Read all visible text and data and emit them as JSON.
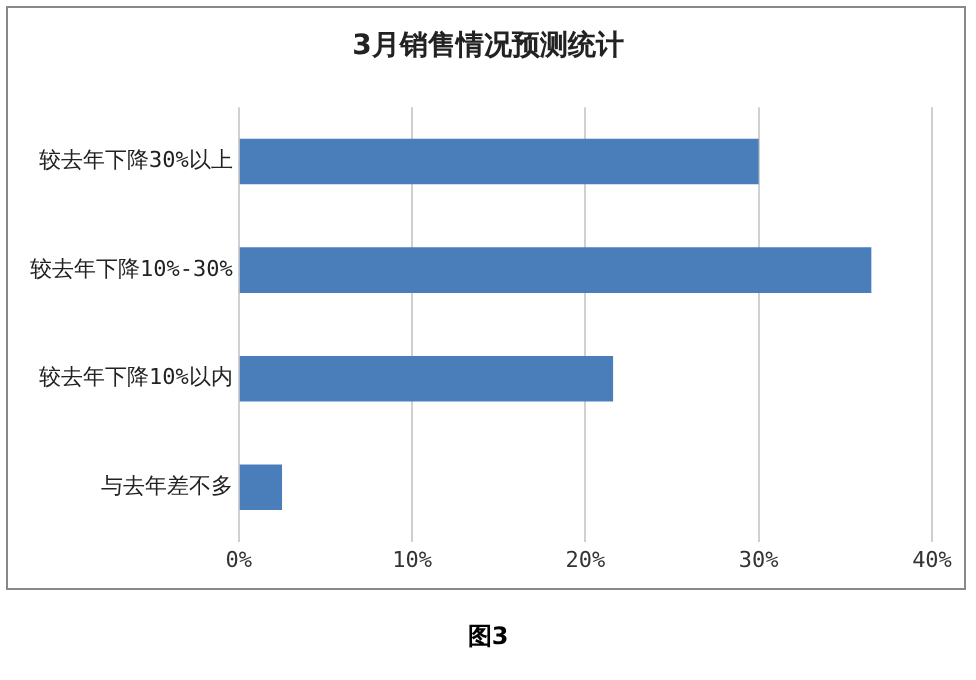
{
  "chart_data": {
    "type": "bar",
    "orientation": "horizontal",
    "title": "3月销售情况预测统计",
    "categories": [
      "较去年下降30%以上",
      "较去年下降10%-30%",
      "较去年下降10%以内",
      "与去年差不多"
    ],
    "values": [
      30,
      36.5,
      21.6,
      2.5
    ],
    "color": "#4a7ebb",
    "xlim": [
      0,
      40
    ],
    "xticks": [
      {
        "value": 0,
        "label": "0%"
      },
      {
        "value": 10,
        "label": "10%"
      },
      {
        "value": 20,
        "label": "20%"
      },
      {
        "value": 30,
        "label": "30%"
      },
      {
        "value": 40,
        "label": "40%"
      }
    ],
    "grid": "x",
    "annotations": [
      "图3"
    ]
  }
}
